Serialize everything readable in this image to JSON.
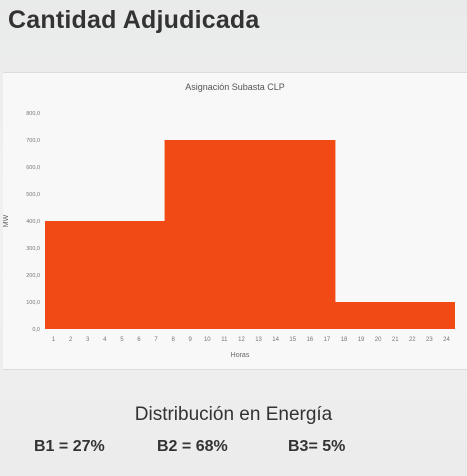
{
  "header": {
    "title": "Cantidad Adjudicada"
  },
  "distribution": {
    "title": "Distribución en Energía",
    "items": [
      {
        "label": "B1 = 27%"
      },
      {
        "label": "B2 = 68%"
      },
      {
        "label": "B3= 5%"
      }
    ]
  },
  "chart_data": {
    "type": "area",
    "title": "Asignación Subasta CLP",
    "xlabel": "Horas",
    "ylabel": "MW",
    "ylim": [
      0,
      800
    ],
    "yticks": [
      "0,0",
      "100,0",
      "200,0",
      "300,0",
      "400,0",
      "500,0",
      "600,0",
      "700,0",
      "800,0"
    ],
    "x": [
      1,
      2,
      3,
      4,
      5,
      6,
      7,
      8,
      9,
      10,
      11,
      12,
      13,
      14,
      15,
      16,
      17,
      18,
      19,
      20,
      21,
      22,
      23,
      24
    ],
    "values": [
      400,
      400,
      400,
      400,
      400,
      400,
      400,
      700,
      700,
      700,
      700,
      700,
      700,
      700,
      700,
      700,
      700,
      100,
      100,
      100,
      100,
      100,
      100,
      100
    ],
    "color": "#f24a14",
    "grid": false,
    "legend": "none"
  }
}
